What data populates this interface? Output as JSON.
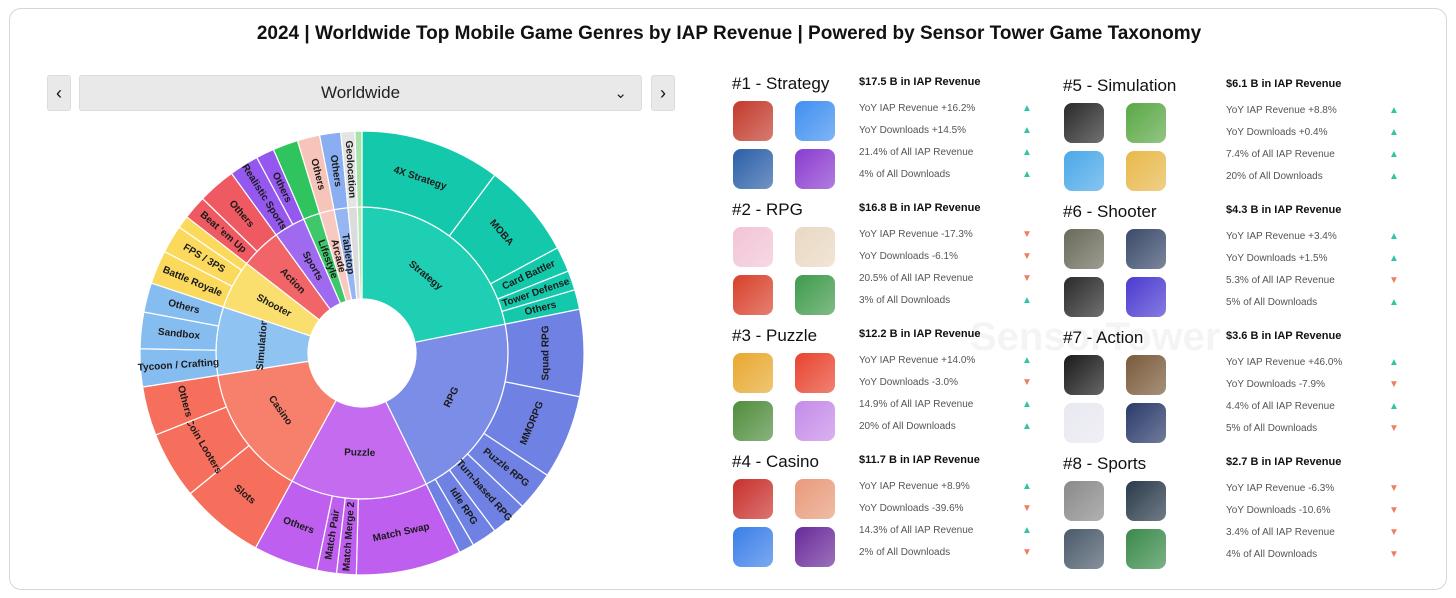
{
  "title": "2024 | Worldwide Top Mobile Game Genres by IAP Revenue | Powered by Sensor Tower Game Taxonomy",
  "region": {
    "selected": "Worldwide",
    "prev_icon": "chevron-left-icon",
    "next_icon": "chevron-right-icon",
    "dropdown_icon": "chevron-down-icon"
  },
  "watermark": "SensorTower",
  "chart_data": {
    "type": "sunburst",
    "inner": [
      {
        "label": "Strategy",
        "value": 21.4,
        "color": "#1ecfb3"
      },
      {
        "label": "RPG",
        "value": 20.5,
        "color": "#7b8de6"
      },
      {
        "label": "Puzzle",
        "value": 14.9,
        "color": "#c56bf0"
      },
      {
        "label": "Casino",
        "value": 14.3,
        "color": "#f7806c"
      },
      {
        "label": "Simulation",
        "value": 7.4,
        "color": "#8fc3f1"
      },
      {
        "label": "Shooter",
        "value": 5.3,
        "color": "#fbdf6e"
      },
      {
        "label": "Action",
        "value": 4.4,
        "color": "#f16468"
      },
      {
        "label": "Sports",
        "value": 3.4,
        "color": "#a06af0"
      },
      {
        "label": "Lifestyle",
        "value": 1.8,
        "color": "#3fc86b"
      },
      {
        "label": "Arcade",
        "value": 1.6,
        "color": "#f8c9c0"
      },
      {
        "label": "Tabletop",
        "value": 1.5,
        "color": "#96b6f2"
      },
      {
        "label": "",
        "value": 1.0,
        "color": "#dcdcdc"
      },
      {
        "label": "",
        "value": 0.5,
        "color": "#b5e8b8"
      }
    ],
    "outer": [
      {
        "parent": "Strategy",
        "label": "4X Strategy",
        "value": 10.0
      },
      {
        "parent": "Strategy",
        "label": "MOBA",
        "value": 6.8
      },
      {
        "parent": "Strategy",
        "label": "Card Battler",
        "value": 1.8
      },
      {
        "parent": "Strategy",
        "label": "Tower Defense",
        "value": 1.4
      },
      {
        "parent": "Strategy",
        "label": "Others",
        "value": 1.4
      },
      {
        "parent": "RPG",
        "label": "Squad RPG",
        "value": 6.2
      },
      {
        "parent": "RPG",
        "label": "MMORPG",
        "value": 6.0
      },
      {
        "parent": "RPG",
        "label": "Puzzle RPG",
        "value": 2.8
      },
      {
        "parent": "RPG",
        "label": "Turn-based RPG",
        "value": 2.6
      },
      {
        "parent": "RPG",
        "label": "Idle RPG",
        "value": 1.8
      },
      {
        "parent": "RPG",
        "label": "",
        "value": 1.1
      },
      {
        "parent": "Puzzle",
        "label": "Match Swap",
        "value": 7.5
      },
      {
        "parent": "Puzzle",
        "label": "Match Merge 2",
        "value": 1.4
      },
      {
        "parent": "Puzzle",
        "label": "Match Pair",
        "value": 1.4
      },
      {
        "parent": "Puzzle",
        "label": "Others",
        "value": 4.6
      },
      {
        "parent": "Casino",
        "label": "Slots",
        "value": 6.0
      },
      {
        "parent": "Casino",
        "label": "Coin Looters",
        "value": 4.8
      },
      {
        "parent": "Casino",
        "label": "Others",
        "value": 3.5
      },
      {
        "parent": "Simulation",
        "label": "Tycoon / Crafting",
        "value": 2.7
      },
      {
        "parent": "Simulation",
        "label": "Sandbox",
        "value": 2.6
      },
      {
        "parent": "Simulation",
        "label": "Others",
        "value": 2.1
      },
      {
        "parent": "Shooter",
        "label": "Battle Royale",
        "value": 2.4
      },
      {
        "parent": "Shooter",
        "label": "FPS / 3PS",
        "value": 2.0
      },
      {
        "parent": "Shooter",
        "label": "",
        "value": 0.9
      },
      {
        "parent": "Action",
        "label": "Beat 'em Up",
        "value": 1.7
      },
      {
        "parent": "Action",
        "label": "Others",
        "value": 2.7
      },
      {
        "parent": "Sports",
        "label": "Realistic Sports",
        "value": 2.1
      },
      {
        "parent": "Sports",
        "label": "Others",
        "value": 1.3
      },
      {
        "parent": "Lifestyle",
        "label": "",
        "value": 1.8
      },
      {
        "parent": "Arcade",
        "label": "Others",
        "value": 1.6
      },
      {
        "parent": "Tabletop",
        "label": "Others",
        "value": 1.5
      },
      {
        "parent": "",
        "label": "Geolocation",
        "value": 1.0
      },
      {
        "parent": "",
        "label": "",
        "value": 0.5
      }
    ],
    "inner_outer_colors": {
      "Strategy": "#14c9ab",
      "RPG": "#6f82e3",
      "Puzzle": "#bf5ff0",
      "Casino": "#f66e5c",
      "Simulation": "#86bdf1",
      "Shooter": "#fbd95c",
      "Action": "#ef5a62",
      "Sports": "#9458ee",
      "Lifestyle": "#30c45f",
      "Arcade": "#f6c4b8",
      "Tabletop": "#8aaef2"
    }
  },
  "genres": [
    {
      "rank": "#1 - Strategy",
      "revenue": "$17.5 B in IAP Revenue",
      "stats": [
        {
          "text": "YoY IAP Revenue +16.2%",
          "dir": "up"
        },
        {
          "text": "YoY Downloads +14.5%",
          "dir": "up"
        },
        {
          "text": "21.4% of All IAP Revenue",
          "dir": "up"
        },
        {
          "text": "4% of All Downloads",
          "dir": "up"
        }
      ],
      "icons": [
        "#c23a2b",
        "#3f8ff0",
        "#2a5fa8",
        "#8a3bd0"
      ]
    },
    {
      "rank": "#2 - RPG",
      "revenue": "$16.8 B in IAP Revenue",
      "stats": [
        {
          "text": "YoY IAP Revenue -17.3%",
          "dir": "down"
        },
        {
          "text": "YoY Downloads -6.1%",
          "dir": "down"
        },
        {
          "text": "20.5% of All IAP Revenue",
          "dir": "down"
        },
        {
          "text": "3% of All Downloads",
          "dir": "up"
        }
      ],
      "icons": [
        "#f2c4d6",
        "#e9d8c2",
        "#d8402a",
        "#3f9a4a"
      ]
    },
    {
      "rank": "#3 - Puzzle",
      "revenue": "$12.2 B in IAP Revenue",
      "stats": [
        {
          "text": "YoY IAP Revenue +14.0%",
          "dir": "up"
        },
        {
          "text": "YoY Downloads -3.0%",
          "dir": "down"
        },
        {
          "text": "14.9% of All IAP Revenue",
          "dir": "up"
        },
        {
          "text": "20% of All Downloads",
          "dir": "up"
        }
      ],
      "icons": [
        "#e8a82f",
        "#e8432e",
        "#4f8d3c",
        "#c58be8"
      ]
    },
    {
      "rank": "#4 - Casino",
      "revenue": "$11.7 B in IAP Revenue",
      "stats": [
        {
          "text": "YoY IAP Revenue +8.9%",
          "dir": "up"
        },
        {
          "text": "YoY Downloads -39.6%",
          "dir": "down"
        },
        {
          "text": "14.3% of All IAP Revenue",
          "dir": "up"
        },
        {
          "text": "2% of All Downloads",
          "dir": "down"
        }
      ],
      "icons": [
        "#c8302c",
        "#e89a7a",
        "#3a7ee8",
        "#6a2a9a"
      ]
    },
    {
      "rank": "#5 - Simulation",
      "revenue": "$6.1 B in IAP Revenue",
      "stats": [
        {
          "text": "YoY IAP Revenue +8.8%",
          "dir": "up"
        },
        {
          "text": "YoY Downloads +0.4%",
          "dir": "up"
        },
        {
          "text": "7.4% of All IAP Revenue",
          "dir": "up"
        },
        {
          "text": "20% of All Downloads",
          "dir": "up"
        }
      ],
      "icons": [
        "#2a2a2a",
        "#5aa845",
        "#4aa8e8",
        "#e8b84a"
      ]
    },
    {
      "rank": "#6 - Shooter",
      "revenue": "$4.3 B in IAP Revenue",
      "stats": [
        {
          "text": "YoY IAP Revenue +3.4%",
          "dir": "up"
        },
        {
          "text": "YoY Downloads +1.5%",
          "dir": "up"
        },
        {
          "text": "5.3% of All IAP Revenue",
          "dir": "down"
        },
        {
          "text": "5% of All Downloads",
          "dir": "up"
        }
      ],
      "icons": [
        "#6a6a5a",
        "#3a4a6a",
        "#2a2a2a",
        "#4a3ad0"
      ]
    },
    {
      "rank": "#7 - Action",
      "revenue": "$3.6 B in IAP Revenue",
      "stats": [
        {
          "text": "YoY IAP Revenue +46.0%",
          "dir": "up"
        },
        {
          "text": "YoY Downloads -7.9%",
          "dir": "down"
        },
        {
          "text": "4.4% of All IAP Revenue",
          "dir": "up"
        },
        {
          "text": "5% of All Downloads",
          "dir": "down"
        }
      ],
      "icons": [
        "#1a1a1a",
        "#7a5a3a",
        "#e8e8f0",
        "#2a3a6a"
      ]
    },
    {
      "rank": "#8 - Sports",
      "revenue": "$2.7 B in IAP Revenue",
      "stats": [
        {
          "text": "YoY IAP Revenue -6.3%",
          "dir": "down"
        },
        {
          "text": "YoY Downloads -10.6%",
          "dir": "down"
        },
        {
          "text": "3.4% of All IAP Revenue",
          "dir": "down"
        },
        {
          "text": "4% of All Downloads",
          "dir": "down"
        }
      ],
      "icons": [
        "#8a8a8a",
        "#2a3a4a",
        "#4a5a6a",
        "#3a8a4a"
      ]
    }
  ]
}
